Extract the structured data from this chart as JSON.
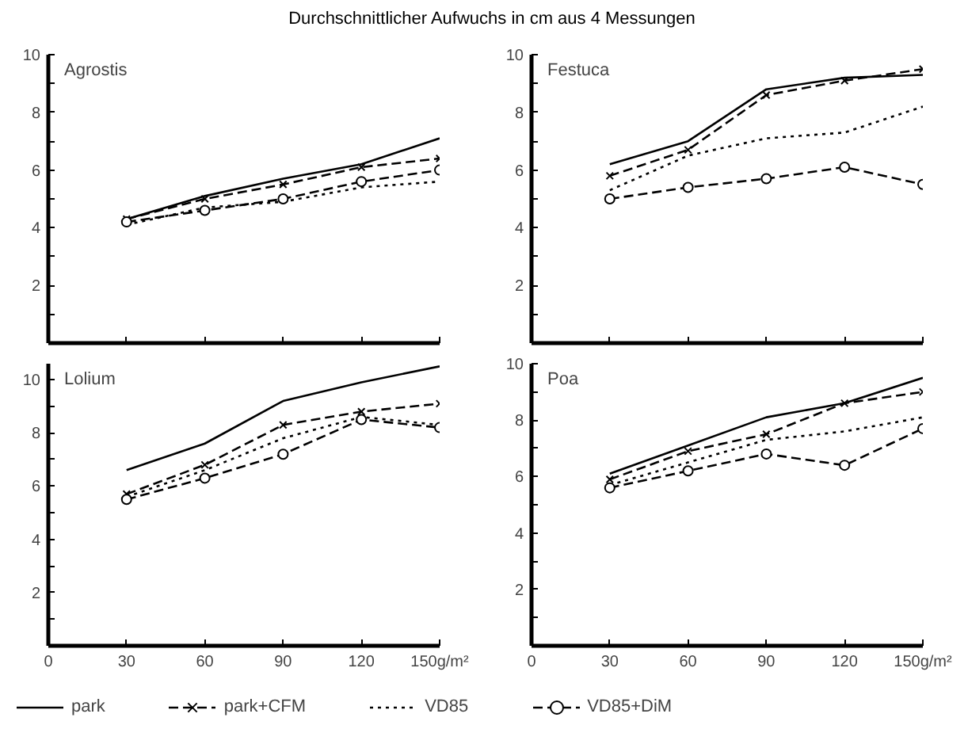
{
  "chart_data": [
    {
      "type": "line",
      "title": "Agrostis",
      "legend": "bottom",
      "annotations": [
        "Durchschnittlicher Aufwuchs in cm aus 4 Messungen"
      ],
      "x": [
        30,
        60,
        90,
        120,
        150
      ],
      "xlim": [
        0,
        150
      ],
      "ylim": [
        0,
        10
      ],
      "xticks": [
        0,
        30,
        60,
        90,
        120,
        150
      ],
      "yticks": [
        {
          "value": 1,
          "label": null
        },
        2,
        {
          "value": 3,
          "label": null
        },
        4,
        {
          "value": 5,
          "label": null
        },
        6,
        {
          "value": 7,
          "label": null
        },
        8,
        {
          "value": 9,
          "label": null
        },
        10
      ],
      "tick_labels": "y",
      "grid": false,
      "series": [
        {
          "name": "park",
          "color": "#000000",
          "line_style": "solid",
          "marker": "none",
          "values": [
            4.3,
            5.1,
            5.7,
            6.2,
            7.1
          ]
        },
        {
          "name": "park+CFM",
          "color": "#000000",
          "line_style": "dashed",
          "marker": "cross",
          "values": [
            4.3,
            5.0,
            5.5,
            6.1,
            6.4
          ]
        },
        {
          "name": "VD85",
          "color": "#000000",
          "line_style": "dotted",
          "marker": "none",
          "values": [
            4.1,
            4.7,
            4.9,
            5.4,
            5.6
          ]
        },
        {
          "name": "VD85+DiM",
          "color": "#000000",
          "line_style": "dashed",
          "marker": "circle",
          "values": [
            4.2,
            4.6,
            5.0,
            5.6,
            6.0
          ]
        }
      ]
    },
    {
      "type": "line",
      "title": "Festuca",
      "x": [
        30,
        60,
        90,
        120,
        150
      ],
      "xlim": [
        0,
        150
      ],
      "ylim": [
        0,
        10
      ],
      "xticks": [
        0,
        30,
        60,
        90,
        120,
        150
      ],
      "yticks": [
        {
          "value": 1,
          "label": null
        },
        2,
        {
          "value": 3,
          "label": null
        },
        4,
        {
          "value": 5,
          "label": null
        },
        6,
        {
          "value": 7,
          "label": null
        },
        8,
        {
          "value": 9,
          "label": null
        },
        10
      ],
      "tick_labels": "y",
      "grid": false,
      "series": [
        {
          "color": "#000000",
          "line_style": "solid",
          "marker": "none",
          "values": [
            6.2,
            7.0,
            8.8,
            9.2,
            9.3
          ]
        },
        {
          "color": "#000000",
          "line_style": "dashed",
          "marker": "cross",
          "values": [
            5.8,
            6.7,
            8.6,
            9.1,
            9.5
          ]
        },
        {
          "color": "#000000",
          "line_style": "dotted",
          "marker": "none",
          "values": [
            5.3,
            6.5,
            7.1,
            7.3,
            8.2
          ]
        },
        {
          "color": "#000000",
          "line_style": "dashed",
          "marker": "circle",
          "values": [
            5.0,
            5.4,
            5.7,
            6.1,
            5.5
          ]
        }
      ]
    },
    {
      "type": "line",
      "title": "Lolium",
      "x": [
        30,
        60,
        90,
        120,
        150
      ],
      "xlim": [
        0,
        150
      ],
      "ylim": [
        0,
        10.6
      ],
      "xticks": [
        0,
        30,
        60,
        90,
        120,
        {
          "value": 150,
          "label": "150g/m²"
        }
      ],
      "yticks": [
        {
          "value": 1,
          "label": null
        },
        2,
        {
          "value": 3,
          "label": null
        },
        4,
        {
          "value": 5,
          "label": null
        },
        6,
        {
          "value": 7,
          "label": null
        },
        8,
        {
          "value": 9,
          "label": null
        },
        10
      ],
      "grid": false,
      "series": [
        {
          "color": "#000000",
          "line_style": "solid",
          "marker": "none",
          "values": [
            6.6,
            7.6,
            9.2,
            9.9,
            10.5
          ]
        },
        {
          "color": "#000000",
          "line_style": "dashed",
          "marker": "cross",
          "values": [
            5.7,
            6.8,
            8.3,
            8.8,
            9.1
          ]
        },
        {
          "color": "#000000",
          "line_style": "dotted",
          "marker": "none",
          "values": [
            5.6,
            6.6,
            7.8,
            8.6,
            8.3
          ]
        },
        {
          "color": "#000000",
          "line_style": "dashed",
          "marker": "circle",
          "values": [
            5.5,
            6.3,
            7.2,
            8.5,
            8.2
          ]
        }
      ]
    },
    {
      "type": "line",
      "title": "Poa",
      "x": [
        30,
        60,
        90,
        120,
        150
      ],
      "xlim": [
        0,
        150
      ],
      "ylim": [
        0,
        10
      ],
      "xticks": [
        0,
        30,
        60,
        90,
        120,
        {
          "value": 150,
          "label": "150g/m²"
        }
      ],
      "yticks": [
        {
          "value": 1,
          "label": null
        },
        2,
        {
          "value": 3,
          "label": null
        },
        4,
        {
          "value": 5,
          "label": null
        },
        6,
        {
          "value": 7,
          "label": null
        },
        8,
        {
          "value": 9,
          "label": null
        },
        10
      ],
      "grid": false,
      "series": [
        {
          "color": "#000000",
          "line_style": "solid",
          "marker": "none",
          "values": [
            6.1,
            7.1,
            8.1,
            8.6,
            9.5
          ]
        },
        {
          "color": "#000000",
          "line_style": "dashed",
          "marker": "cross",
          "values": [
            5.9,
            6.9,
            7.5,
            8.6,
            9.0
          ]
        },
        {
          "color": "#000000",
          "line_style": "dotted",
          "marker": "none",
          "values": [
            5.7,
            6.5,
            7.3,
            7.6,
            8.1
          ]
        },
        {
          "color": "#000000",
          "line_style": "dashed",
          "marker": "circle",
          "values": [
            5.6,
            6.2,
            6.8,
            6.4,
            7.7
          ]
        }
      ]
    }
  ]
}
